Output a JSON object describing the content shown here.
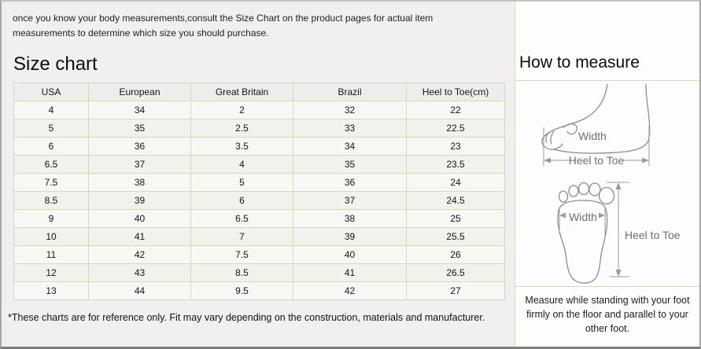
{
  "top_note": "once you know your body measurements,consult the Size Chart on the product pages for actual item measurements to determine which size you should purchase.",
  "left": {
    "title": "Size chart",
    "table": {
      "headers": [
        "USA",
        "European",
        "Great Britain",
        "Brazil",
        "Heel to Toe(cm)"
      ],
      "rows": [
        [
          "4",
          "34",
          "2",
          "32",
          "22"
        ],
        [
          "5",
          "35",
          "2.5",
          "33",
          "22.5"
        ],
        [
          "6",
          "36",
          "3.5",
          "34",
          "23"
        ],
        [
          "6.5",
          "37",
          "4",
          "35",
          "23.5"
        ],
        [
          "7.5",
          "38",
          "5",
          "36",
          "24"
        ],
        [
          "8.5",
          "39",
          "6",
          "37",
          "24.5"
        ],
        [
          "9",
          "40",
          "6.5",
          "38",
          "25"
        ],
        [
          "10",
          "41",
          "7",
          "39",
          "25.5"
        ],
        [
          "11",
          "42",
          "7.5",
          "40",
          "26"
        ],
        [
          "12",
          "43",
          "8.5",
          "41",
          "26.5"
        ],
        [
          "13",
          "44",
          "9.5",
          "42",
          "27"
        ]
      ]
    },
    "footnote": "*These charts are for reference only. Fit may vary depending on the construction, materials and manufacturer."
  },
  "right": {
    "title": "How to measure",
    "side_diagram": {
      "width_label": "Width",
      "heel_to_toe_label": "Heel to Toe"
    },
    "sole_diagram": {
      "width_label": "Width",
      "heel_to_toe_label": "Heel to Toe"
    },
    "note": "Measure while standing with your foot firmly on the floor and parallel to your other foot."
  },
  "colors": {
    "page_bg": "#f1f0ee",
    "right_bg": "#fdfdfd",
    "table_border": "#d9d5c0",
    "row_odd_bg": "#f8f7f4",
    "row_even_bg": "#f2f1eb",
    "header_row_bg": "#eeedea",
    "outer_frame_border": "#a6a6a6",
    "diagram_stroke": "#8c8c8c",
    "diagram_label_text": "#6e6e6e"
  }
}
